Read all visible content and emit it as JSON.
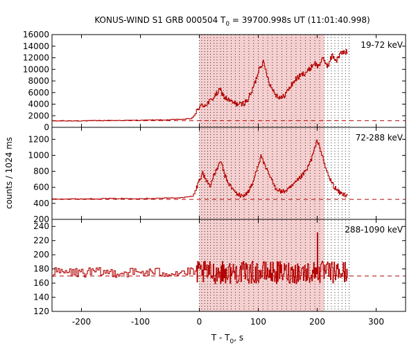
{
  "colors": {
    "data_line": "#b40000",
    "background_dashed": "#b40000",
    "shade": "#f4c8c8",
    "axis": "#000000",
    "dotted_lines": "#000000"
  },
  "chart_data": {
    "type": "line",
    "title_prefix": "KONUS-WIND S1 GRB 000504 T",
    "title_subscript": "0",
    "title_suffix": " = 39700.998s UT (11:01:40.998)",
    "xlabel_prefix": "T - T",
    "xlabel_subscript": "0",
    "xlabel_suffix": ", s",
    "ylabel": "counts / 1024 ms",
    "xlim": [
      -250,
      350
    ],
    "xticks": [
      "-200",
      "-100",
      "0",
      "100",
      "200",
      "300"
    ],
    "xtick_values": [
      -200,
      -100,
      0,
      100,
      200,
      300
    ],
    "shaded_interval": [
      0,
      212
    ],
    "dotted_lines_x": [
      0,
      4,
      9,
      14,
      19,
      25,
      30,
      36,
      41,
      47,
      54,
      61,
      68,
      76,
      84,
      92,
      100,
      108,
      116,
      124,
      132,
      140,
      148,
      156,
      164,
      172,
      180,
      188,
      196,
      204,
      212,
      218,
      224,
      230,
      236,
      242,
      248,
      254
    ],
    "panels": [
      {
        "band_label": "19-72 keV",
        "ylim": [
          0,
          16000
        ],
        "yticks": [
          "0",
          "2000",
          "4000",
          "6000",
          "8000",
          "10000",
          "12000",
          "14000",
          "16000"
        ],
        "ytick_values": [
          0,
          2000,
          4000,
          6000,
          8000,
          10000,
          12000,
          14000,
          16000
        ],
        "background_level": 1150,
        "profile": [
          [
            -250,
            1100
          ],
          [
            -200,
            1120
          ],
          [
            -150,
            1180
          ],
          [
            -100,
            1220
          ],
          [
            -60,
            1280
          ],
          [
            -30,
            1380
          ],
          [
            -15,
            1500
          ],
          [
            -8,
            2200
          ],
          [
            0,
            3600
          ],
          [
            10,
            3900
          ],
          [
            20,
            4700
          ],
          [
            35,
            6500
          ],
          [
            42,
            5200
          ],
          [
            55,
            4300
          ],
          [
            70,
            3900
          ],
          [
            80,
            4500
          ],
          [
            88,
            6000
          ],
          [
            95,
            8000
          ],
          [
            102,
            10500
          ],
          [
            108,
            11200
          ],
          [
            114,
            9300
          ],
          [
            120,
            7200
          ],
          [
            130,
            5600
          ],
          [
            140,
            5000
          ],
          [
            150,
            6400
          ],
          [
            162,
            8200
          ],
          [
            175,
            9200
          ],
          [
            185,
            9800
          ],
          [
            195,
            11200
          ],
          [
            200,
            10500
          ],
          [
            210,
            11800
          ],
          [
            218,
            10500
          ],
          [
            225,
            12500
          ],
          [
            232,
            11500
          ],
          [
            240,
            12800
          ],
          [
            250,
            13000
          ],
          [
            252,
            13000
          ]
        ]
      },
      {
        "band_label": "72-288 keV",
        "ylim": [
          200,
          1350
        ],
        "yticks": [
          "200",
          "400",
          "600",
          "800",
          "1000",
          "1200"
        ],
        "ytick_values": [
          200,
          400,
          600,
          800,
          1000,
          1200
        ],
        "background_level": 450,
        "profile": [
          [
            -250,
            455
          ],
          [
            -200,
            455
          ],
          [
            -150,
            460
          ],
          [
            -100,
            460
          ],
          [
            -60,
            465
          ],
          [
            -30,
            470
          ],
          [
            -12,
            490
          ],
          [
            -6,
            580
          ],
          [
            0,
            700
          ],
          [
            5,
            780
          ],
          [
            12,
            680
          ],
          [
            18,
            620
          ],
          [
            25,
            760
          ],
          [
            32,
            870
          ],
          [
            37,
            920
          ],
          [
            42,
            760
          ],
          [
            50,
            640
          ],
          [
            60,
            540
          ],
          [
            70,
            490
          ],
          [
            80,
            520
          ],
          [
            90,
            640
          ],
          [
            98,
            860
          ],
          [
            105,
            1000
          ],
          [
            110,
            870
          ],
          [
            118,
            760
          ],
          [
            128,
            600
          ],
          [
            140,
            540
          ],
          [
            152,
            580
          ],
          [
            162,
            650
          ],
          [
            172,
            730
          ],
          [
            182,
            820
          ],
          [
            190,
            960
          ],
          [
            196,
            1100
          ],
          [
            200,
            1190
          ],
          [
            206,
            1050
          ],
          [
            212,
            880
          ],
          [
            220,
            720
          ],
          [
            228,
            610
          ],
          [
            236,
            540
          ],
          [
            245,
            510
          ],
          [
            252,
            500
          ]
        ]
      },
      {
        "band_label": "288-1090 keV",
        "ylim": [
          120,
          250
        ],
        "yticks": [
          "120",
          "140",
          "160",
          "180",
          "200",
          "220",
          "240"
        ],
        "ytick_values": [
          120,
          140,
          160,
          180,
          200,
          220,
          240
        ],
        "background_level": 170,
        "noise_center": 175,
        "noise_amplitude_before": 7,
        "noise_amplitude_burst": 16,
        "noise_peak_x": 200,
        "noise_peak_value": 231
      }
    ]
  }
}
